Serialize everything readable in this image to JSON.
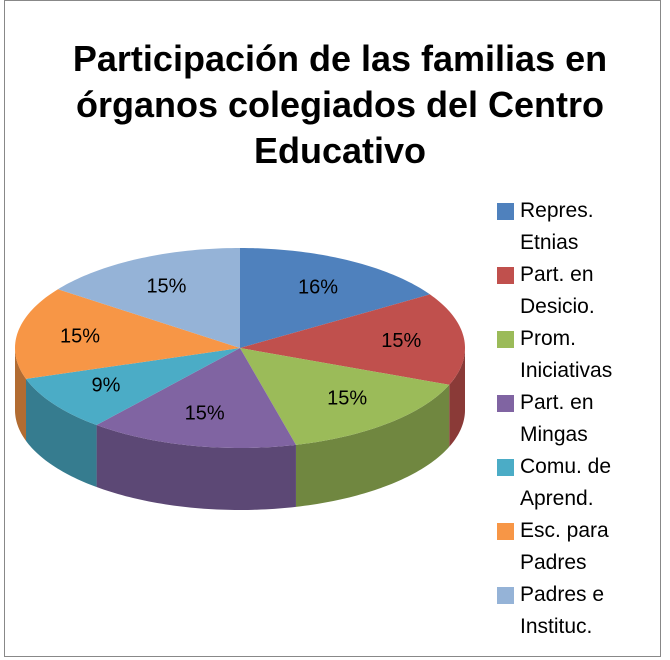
{
  "chart_data": {
    "type": "pie3d",
    "title": "Participación de las familias en órganos colegiados del Centro Educativo",
    "categories": [
      "Repres. Etnias",
      "Part. en Desicio.",
      "Prom. Iniciativas",
      "Part. en Mingas",
      "Comu. de Aprend.",
      "Esc. para Padres",
      "Padres e Instituc."
    ],
    "values": [
      16,
      15,
      15,
      15,
      9,
      15,
      15
    ],
    "value_labels": [
      "16%",
      "15%",
      "15%",
      "15%",
      "9%",
      "15%",
      "15%"
    ],
    "colors": [
      "#4f81bd",
      "#c0504d",
      "#9bbb59",
      "#8064a2",
      "#4bacc6",
      "#f79646",
      "#95b3d7"
    ],
    "legend": "right"
  }
}
